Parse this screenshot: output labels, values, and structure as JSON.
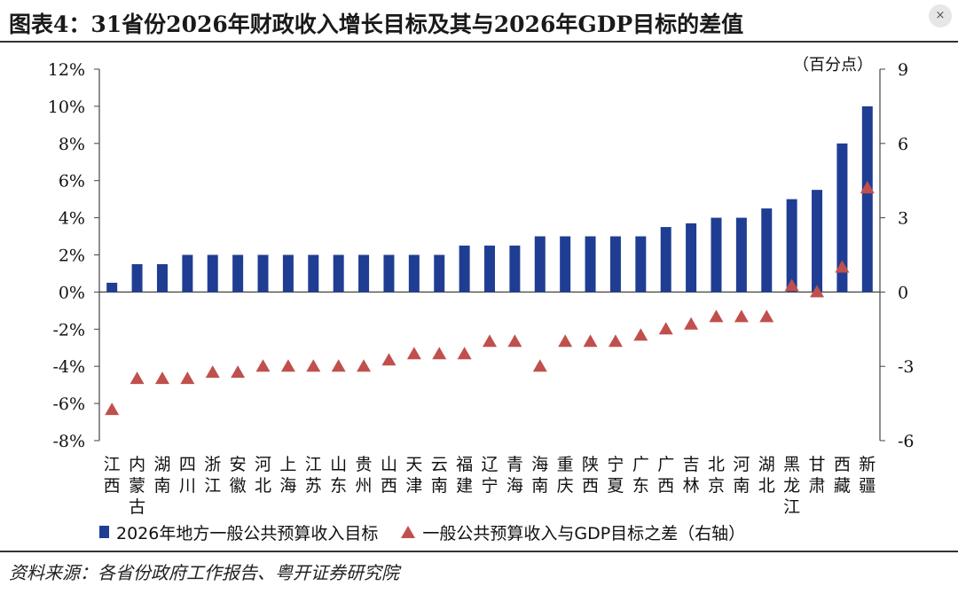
{
  "title": "图表4：31省份2026年财政收入增长目标及其与2026年GDP目标的差值",
  "close_icon": "×",
  "chart_data": {
    "type": "bar+scatter",
    "right_axis_unit": "（百分点）",
    "categories": [
      "江西",
      "内蒙古",
      "湖南",
      "四川",
      "浙江",
      "安徽",
      "河北",
      "上海",
      "江苏",
      "山东",
      "贵州",
      "山西",
      "天津",
      "云南",
      "福建",
      "辽宁",
      "青海",
      "海南",
      "重庆",
      "陕西",
      "宁夏",
      "广东",
      "广西",
      "吉林",
      "北京",
      "河南",
      "湖北",
      "黑龙江",
      "甘肃",
      "西藏",
      "新疆"
    ],
    "left_axis": {
      "min": -8,
      "max": 12,
      "step": 2,
      "tick_labels": [
        "12%",
        "10%",
        "8%",
        "6%",
        "4%",
        "2%",
        "0%",
        "-2%",
        "-4%",
        "-6%",
        "-8%"
      ]
    },
    "right_axis": {
      "min": -6,
      "max": 9,
      "step": 3,
      "tick_labels": [
        "9",
        "6",
        "3",
        "0",
        "-3",
        "-6"
      ]
    },
    "series": [
      {
        "name": "2026年地方一般公共预算收入目标",
        "type": "bar",
        "axis": "left",
        "color": "#1f3e93",
        "values": [
          0.5,
          1.5,
          1.5,
          2,
          2,
          2,
          2,
          2,
          2,
          2,
          2,
          2,
          2,
          2,
          2.5,
          2.5,
          2.5,
          3,
          3,
          3,
          3,
          3,
          3.5,
          3.7,
          4,
          4,
          4.5,
          5,
          5.5,
          8,
          10
        ]
      },
      {
        "name": "一般公共预算收入与GDP目标之差（右轴）",
        "type": "scatter",
        "axis": "right",
        "marker": "triangle",
        "color": "#c0504d",
        "values": [
          -4.75,
          -3.5,
          -3.5,
          -3.5,
          -3.25,
          -3.25,
          -3,
          -3,
          -3,
          -3,
          -3,
          -2.75,
          -2.5,
          -2.5,
          -2.5,
          -2,
          -2,
          -3,
          -2,
          -2,
          -2,
          -1.75,
          -1.5,
          -1.3,
          -1,
          -1,
          -1,
          0.25,
          0,
          1,
          4.2
        ]
      }
    ]
  },
  "legend": {
    "bar_label": "2026年地方一般公共预算收入目标",
    "tri_label": "一般公共预算收入与GDP目标之差（右轴）"
  },
  "source": "资料来源：各省份政府工作报告、粤开证券研究院"
}
